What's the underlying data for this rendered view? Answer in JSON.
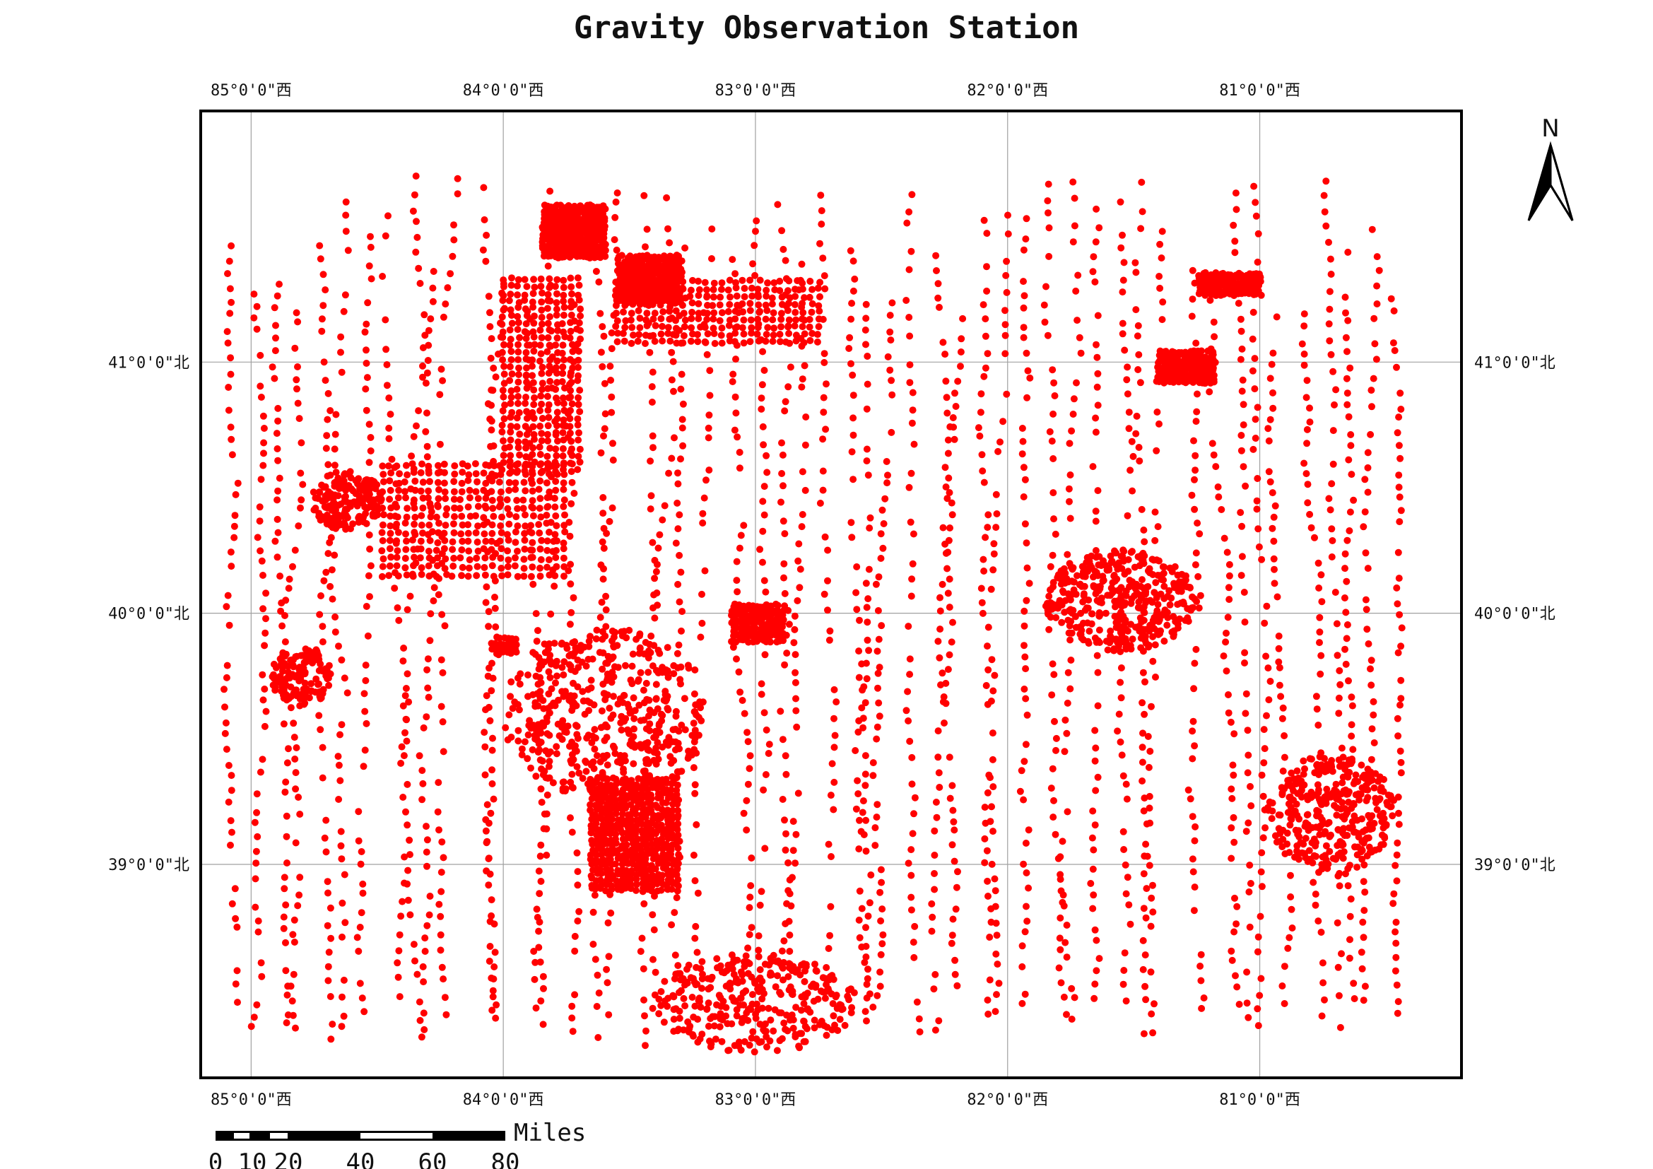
{
  "title": "Gravity Observation Station",
  "colors": {
    "station": "#ff0000",
    "frame": "#000000",
    "grid": "#a0a0a0"
  },
  "map": {
    "lon_range": [
      -85.2,
      -80.2
    ],
    "lat_range": [
      38.15,
      42.0
    ],
    "graticule_lon": [
      -85,
      -84,
      -83,
      -82,
      -81
    ],
    "graticule_lat": [
      41,
      40,
      39
    ],
    "lon_labels": [
      "85°0'0\"西",
      "84°0'0\"西",
      "83°0'0\"西",
      "82°0'0\"西",
      "81°0'0\"西"
    ],
    "lat_labels": [
      "41°0'0\"北",
      "40°0'0\"北",
      "39°0'0\"北"
    ]
  },
  "north_arrow": {
    "letter": "N",
    "icon": "north-arrow-icon"
  },
  "scale_bar": {
    "unit": "Miles",
    "ticks": [
      "0",
      "10",
      "20",
      "40",
      "60",
      "80"
    ]
  },
  "station_clusters": [
    {
      "center": [
        -83.72,
        41.52
      ],
      "spread": [
        0.12,
        0.1
      ],
      "count": 260,
      "kind": "grid"
    },
    {
      "center": [
        -83.42,
        41.33
      ],
      "spread": [
        0.12,
        0.09
      ],
      "count": 200,
      "kind": "grid"
    },
    {
      "center": [
        -81.12,
        41.31
      ],
      "spread": [
        0.12,
        0.04
      ],
      "count": 110,
      "kind": "grid"
    },
    {
      "center": [
        -81.29,
        40.98
      ],
      "spread": [
        0.11,
        0.06
      ],
      "count": 130,
      "kind": "grid"
    },
    {
      "center": [
        -84.62,
        40.45
      ],
      "spread": [
        0.14,
        0.12
      ],
      "count": 170,
      "kind": "random"
    },
    {
      "center": [
        -84.12,
        40.37
      ],
      "spread": [
        0.36,
        0.22
      ],
      "count": 340,
      "kind": "grid"
    },
    {
      "center": [
        -84.8,
        39.75
      ],
      "spread": [
        0.12,
        0.12
      ],
      "count": 140,
      "kind": "random"
    },
    {
      "center": [
        -83.99,
        39.87
      ],
      "spread": [
        0.04,
        0.03
      ],
      "count": 25,
      "kind": "grid"
    },
    {
      "center": [
        -82.99,
        39.96
      ],
      "spread": [
        0.1,
        0.07
      ],
      "count": 130,
      "kind": "grid"
    },
    {
      "center": [
        -81.55,
        40.05
      ],
      "spread": [
        0.3,
        0.2
      ],
      "count": 380,
      "kind": "random"
    },
    {
      "center": [
        -83.48,
        39.12
      ],
      "spread": [
        0.17,
        0.22
      ],
      "count": 420,
      "kind": "grid"
    },
    {
      "center": [
        -83.0,
        38.45
      ],
      "spread": [
        0.4,
        0.2
      ],
      "count": 300,
      "kind": "random"
    },
    {
      "center": [
        -80.72,
        39.2
      ],
      "spread": [
        0.26,
        0.24
      ],
      "count": 300,
      "kind": "random"
    },
    {
      "center": [
        -83.15,
        41.2
      ],
      "spread": [
        0.4,
        0.12
      ],
      "count": 240,
      "kind": "grid"
    },
    {
      "center": [
        -83.85,
        40.95
      ],
      "spread": [
        0.15,
        0.38
      ],
      "count": 300,
      "kind": "grid"
    },
    {
      "center": [
        -83.6,
        39.6
      ],
      "spread": [
        0.4,
        0.35
      ],
      "count": 420,
      "kind": "random"
    }
  ],
  "station_lines": {
    "lat_top": 41.78,
    "lat_bottom": 38.28,
    "columns": 52,
    "points_per_column": 55
  }
}
